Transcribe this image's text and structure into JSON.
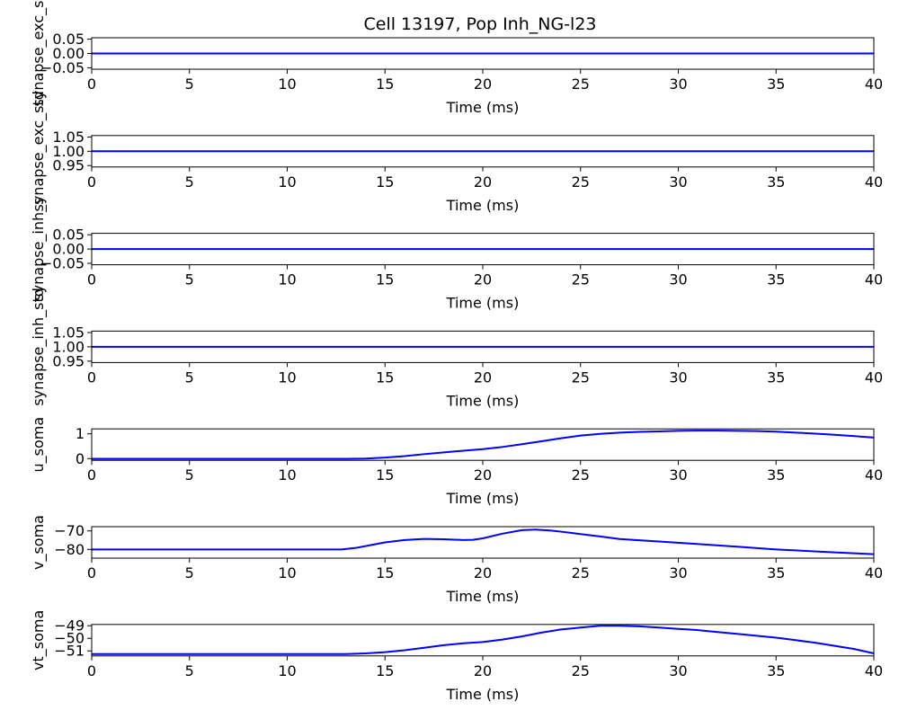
{
  "chart_data": {
    "type": "line",
    "title": "Cell 13197, Pop Inh_NG-l23",
    "line_color": "#0000ff",
    "subplots": [
      {
        "ylabel": "synapse_exc_s",
        "xlabel": "Time (ms)",
        "xlim": [
          0,
          40
        ],
        "ylim": [
          -0.055,
          0.055
        ],
        "xticks": [
          0,
          5,
          10,
          15,
          20,
          25,
          30,
          35,
          40
        ],
        "xtick_labels": [
          "0",
          "5",
          "10",
          "15",
          "20",
          "25",
          "30",
          "35",
          "40"
        ],
        "yticks": [
          -0.05,
          0,
          0.05
        ],
        "ytick_labels": [
          "−0.05",
          "0.00",
          "0.05"
        ],
        "series": [
          {
            "x": [
              0,
              40
            ],
            "y": [
              0,
              0
            ]
          }
        ]
      },
      {
        "ylabel": "synapse_exc_std",
        "xlabel": "Time (ms)",
        "xlim": [
          0,
          40
        ],
        "ylim": [
          0.945,
          1.055
        ],
        "xticks": [
          0,
          5,
          10,
          15,
          20,
          25,
          30,
          35,
          40
        ],
        "xtick_labels": [
          "0",
          "5",
          "10",
          "15",
          "20",
          "25",
          "30",
          "35",
          "40"
        ],
        "yticks": [
          0.95,
          1.0,
          1.05
        ],
        "ytick_labels": [
          "0.95",
          "1.00",
          "1.05"
        ],
        "series": [
          {
            "x": [
              0,
              40
            ],
            "y": [
              1,
              1
            ]
          }
        ]
      },
      {
        "ylabel": "synapse_inh_s",
        "xlabel": "Time (ms)",
        "xlim": [
          0,
          40
        ],
        "ylim": [
          -0.055,
          0.055
        ],
        "xticks": [
          0,
          5,
          10,
          15,
          20,
          25,
          30,
          35,
          40
        ],
        "xtick_labels": [
          "0",
          "5",
          "10",
          "15",
          "20",
          "25",
          "30",
          "35",
          "40"
        ],
        "yticks": [
          -0.05,
          0,
          0.05
        ],
        "ytick_labels": [
          "−0.05",
          "0.00",
          "0.05"
        ],
        "series": [
          {
            "x": [
              0,
              40
            ],
            "y": [
              0,
              0
            ]
          }
        ]
      },
      {
        "ylabel": "synapse_inh_std",
        "xlabel": "Time (ms)",
        "xlim": [
          0,
          40
        ],
        "ylim": [
          0.945,
          1.055
        ],
        "xticks": [
          0,
          5,
          10,
          15,
          20,
          25,
          30,
          35,
          40
        ],
        "xtick_labels": [
          "0",
          "5",
          "10",
          "15",
          "20",
          "25",
          "30",
          "35",
          "40"
        ],
        "yticks": [
          0.95,
          1.0,
          1.05
        ],
        "ytick_labels": [
          "0.95",
          "1.00",
          "1.05"
        ],
        "series": [
          {
            "x": [
              0,
              40
            ],
            "y": [
              1,
              1
            ]
          }
        ]
      },
      {
        "ylabel": "u_soma",
        "xlabel": "Time (ms)",
        "xlim": [
          0,
          40
        ],
        "ylim": [
          -0.07,
          1.2
        ],
        "xticks": [
          0,
          5,
          10,
          15,
          20,
          25,
          30,
          35,
          40
        ],
        "xtick_labels": [
          "0",
          "5",
          "10",
          "15",
          "20",
          "25",
          "30",
          "35",
          "40"
        ],
        "yticks": [
          0,
          1
        ],
        "ytick_labels": [
          "0",
          "1"
        ],
        "series": [
          {
            "x": [
              0,
              10,
              13,
              14,
              15,
              16,
              17,
              18,
              19,
              20,
              21,
              22,
              23,
              24,
              25,
              26,
              27,
              28,
              29,
              30,
              31,
              32,
              33,
              34,
              35,
              36,
              37,
              38,
              39,
              40
            ],
            "y": [
              -0.01,
              -0.01,
              -0.01,
              0.0,
              0.04,
              0.1,
              0.18,
              0.25,
              0.32,
              0.38,
              0.47,
              0.58,
              0.7,
              0.82,
              0.93,
              1.0,
              1.05,
              1.08,
              1.1,
              1.12,
              1.13,
              1.13,
              1.12,
              1.11,
              1.09,
              1.05,
              1.01,
              0.96,
              0.91,
              0.85
            ]
          }
        ]
      },
      {
        "ylabel": "v_soma",
        "xlabel": "Time (ms)",
        "xlim": [
          0,
          40
        ],
        "ylim": [
          -84.7,
          -67.7
        ],
        "xticks": [
          0,
          5,
          10,
          15,
          20,
          25,
          30,
          35,
          40
        ],
        "xtick_labels": [
          "0",
          "5",
          "10",
          "15",
          "20",
          "25",
          "30",
          "35",
          "40"
        ],
        "yticks": [
          -80,
          -70
        ],
        "ytick_labels": [
          "−80",
          "−70"
        ],
        "series": [
          {
            "x": [
              0,
              10,
              12.8,
              13.5,
              14,
              15,
              16,
              17,
              18,
              19,
              19.5,
              20,
              21,
              22,
              22.7,
              23.5,
              24,
              25,
              26,
              27,
              30,
              33,
              35,
              38,
              40
            ],
            "y": [
              -80.0,
              -80.0,
              -80.0,
              -79.2,
              -78.2,
              -76.2,
              -74.9,
              -74.3,
              -74.5,
              -74.9,
              -74.8,
              -74.0,
              -71.5,
              -69.6,
              -69.3,
              -69.8,
              -70.4,
              -71.7,
              -73.0,
              -74.4,
              -76.4,
              -78.5,
              -80.0,
              -81.6,
              -82.6
            ]
          }
        ]
      },
      {
        "ylabel": "vt_soma",
        "xlabel": "Time (ms)",
        "xlim": [
          0,
          40
        ],
        "ylim": [
          -51.4,
          -48.9
        ],
        "xticks": [
          0,
          5,
          10,
          15,
          20,
          25,
          30,
          35,
          40
        ],
        "xtick_labels": [
          "0",
          "5",
          "10",
          "15",
          "20",
          "25",
          "30",
          "35",
          "40"
        ],
        "yticks": [
          -51,
          -50,
          -49
        ],
        "ytick_labels": [
          "−51",
          "−50",
          "−49"
        ],
        "series": [
          {
            "x": [
              0,
              10,
              13,
              14,
              15,
              16,
              17,
              18,
              19,
              20,
              21,
              22,
              23,
              24,
              25,
              26,
              27,
              28,
              29,
              30,
              31,
              32,
              33,
              34,
              35,
              36,
              37,
              38,
              39,
              40
            ],
            "y": [
              -51.25,
              -51.25,
              -51.25,
              -51.2,
              -51.1,
              -50.95,
              -50.75,
              -50.55,
              -50.4,
              -50.3,
              -50.1,
              -49.85,
              -49.55,
              -49.3,
              -49.15,
              -49.0,
              -49.0,
              -49.05,
              -49.15,
              -49.25,
              -49.35,
              -49.5,
              -49.65,
              -49.8,
              -49.95,
              -50.15,
              -50.35,
              -50.6,
              -50.85,
              -51.2
            ]
          }
        ]
      }
    ]
  }
}
